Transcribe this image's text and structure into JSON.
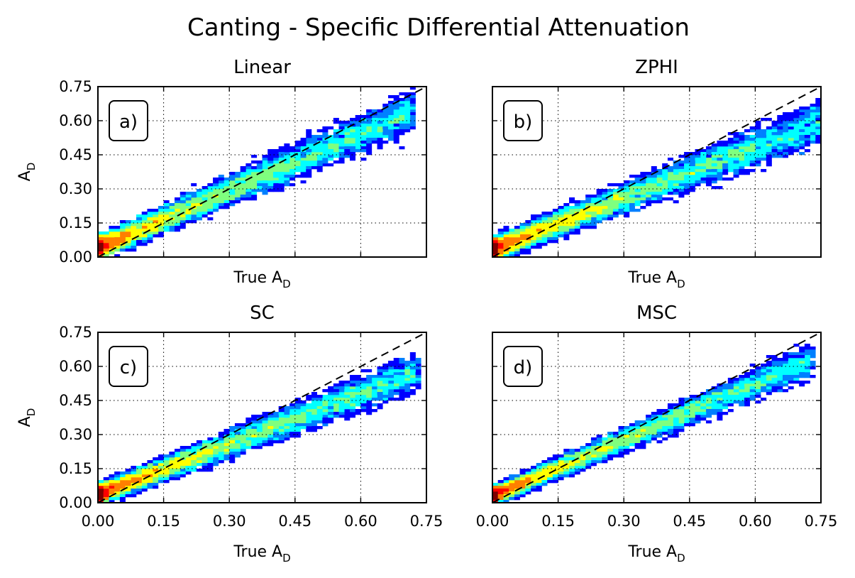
{
  "figure": {
    "title": "Canting - Specific Differential Attenuation"
  },
  "colors": {
    "identity_line": "#000000",
    "colormap": [
      "#00007f",
      "#0000ff",
      "#007fff",
      "#00ffff",
      "#7fff7f",
      "#ffff00",
      "#ff7f00",
      "#ff0000",
      "#7f0000"
    ]
  },
  "chart_data": [
    {
      "type": "heatmap",
      "panel_label": "a)",
      "title": "Linear",
      "xlabel": {
        "base": "True A",
        "sub": "D"
      },
      "ylabel": {
        "base": "A",
        "sub": "D"
      },
      "xlim": [
        0,
        0.75
      ],
      "ylim": [
        0,
        0.75
      ],
      "xticks": [
        "0.00",
        "0.15",
        "0.30",
        "0.45",
        "0.60",
        "0.75"
      ],
      "yticks": [
        "0.00",
        "0.15",
        "0.30",
        "0.45",
        "0.60",
        "0.75"
      ],
      "show_xticklabels": false,
      "show_yticklabels": true,
      "grid": true,
      "reference_line": "y = x (dashed)",
      "approx_fit": {
        "slope": 0.88,
        "intercept": 0.04,
        "spread": 0.045
      },
      "x_extent": [
        0.0,
        0.72
      ]
    },
    {
      "type": "heatmap",
      "panel_label": "b)",
      "title": "ZPHI",
      "xlabel": {
        "base": "True A",
        "sub": "D"
      },
      "ylabel": {
        "base": "",
        "sub": ""
      },
      "xlim": [
        0,
        0.75
      ],
      "ylim": [
        0,
        0.75
      ],
      "xticks": [
        "0.00",
        "0.15",
        "0.30",
        "0.45",
        "0.60",
        "0.75"
      ],
      "yticks": [
        "0.00",
        "0.15",
        "0.30",
        "0.45",
        "0.60",
        "0.75"
      ],
      "show_xticklabels": false,
      "show_yticklabels": false,
      "grid": true,
      "reference_line": "y = x (dashed)",
      "approx_fit": {
        "slope": 0.78,
        "intercept": 0.035,
        "spread": 0.045
      },
      "x_extent": [
        0.0,
        0.75
      ]
    },
    {
      "type": "heatmap",
      "panel_label": "c)",
      "title": "SC",
      "xlabel": {
        "base": "True A",
        "sub": "D"
      },
      "ylabel": {
        "base": "A",
        "sub": "D"
      },
      "xlim": [
        0,
        0.75
      ],
      "ylim": [
        0,
        0.75
      ],
      "xticks": [
        "0.00",
        "0.15",
        "0.30",
        "0.45",
        "0.60",
        "0.75"
      ],
      "yticks": [
        "0.00",
        "0.15",
        "0.30",
        "0.45",
        "0.60",
        "0.75"
      ],
      "show_xticklabels": true,
      "show_yticklabels": true,
      "grid": true,
      "reference_line": "y = x (dashed)",
      "approx_fit": {
        "slope": 0.78,
        "intercept": 0.035,
        "spread": 0.04
      },
      "x_extent": [
        0.0,
        0.73
      ]
    },
    {
      "type": "heatmap",
      "panel_label": "d)",
      "title": "MSC",
      "xlabel": {
        "base": "True A",
        "sub": "D"
      },
      "ylabel": {
        "base": "",
        "sub": ""
      },
      "xlim": [
        0,
        0.75
      ],
      "ylim": [
        0,
        0.75
      ],
      "xticks": [
        "0.00",
        "0.15",
        "0.30",
        "0.45",
        "0.60",
        "0.75"
      ],
      "yticks": [
        "0.00",
        "0.15",
        "0.30",
        "0.45",
        "0.60",
        "0.75"
      ],
      "show_xticklabels": true,
      "show_yticklabels": false,
      "grid": true,
      "reference_line": "y = x (dashed)",
      "approx_fit": {
        "slope": 0.85,
        "intercept": 0.03,
        "spread": 0.035
      },
      "x_extent": [
        0.0,
        0.73
      ]
    }
  ]
}
